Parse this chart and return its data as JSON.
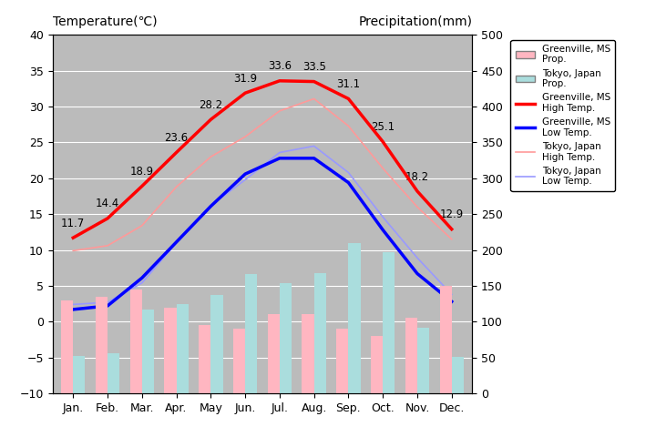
{
  "months": [
    "Jan.",
    "Feb.",
    "Mar.",
    "Apr.",
    "May",
    "Jun.",
    "Jul.",
    "Aug.",
    "Sep.",
    "Oct.",
    "Nov.",
    "Dec."
  ],
  "greenville_high": [
    11.7,
    14.4,
    18.9,
    23.6,
    28.2,
    31.9,
    33.6,
    33.5,
    31.1,
    25.1,
    18.2,
    12.9
  ],
  "greenville_low": [
    1.7,
    2.2,
    6.1,
    11.1,
    16.1,
    20.6,
    22.8,
    22.8,
    19.4,
    12.8,
    6.7,
    2.8
  ],
  "tokyo_high": [
    9.9,
    10.6,
    13.4,
    18.8,
    23.0,
    25.8,
    29.4,
    31.1,
    27.3,
    21.4,
    16.0,
    11.5
  ],
  "tokyo_low": [
    2.4,
    2.7,
    5.4,
    11.0,
    16.2,
    19.8,
    23.6,
    24.5,
    20.8,
    14.6,
    8.9,
    3.8
  ],
  "greenville_precip_mm": [
    130,
    135,
    145,
    120,
    95,
    90,
    110,
    110,
    90,
    80,
    105,
    150
  ],
  "tokyo_precip_mm": [
    52,
    56,
    117,
    125,
    137,
    167,
    154,
    168,
    209,
    197,
    92,
    51
  ],
  "temp_ylim": [
    -10,
    40
  ],
  "precip_ylim": [
    0,
    500
  ],
  "bar_width": 0.35,
  "greenville_bar_color": "#FFB6C1",
  "tokyo_bar_color": "#AADDDD",
  "greenville_high_color": "#FF0000",
  "greenville_low_color": "#0000FF",
  "tokyo_high_color": "#FF9999",
  "tokyo_low_color": "#9999FF",
  "bg_color": "#BBBBBB",
  "grid_color": "#FFFFFF",
  "title_left": "Temperature(℃)",
  "title_right": "Precipitation(mm)",
  "legend_labels": [
    "Greenville, MS\nProp.",
    "Tokyo, Japan\nProp.",
    "Greenville, MS\nHigh Temp.",
    "Greenville, MS\nLow Temp.",
    "Tokyo, Japan\nHigh Temp.",
    "Tokyo, Japan\nLow Temp."
  ],
  "greenville_high_labels": [
    "11.7",
    "14.4",
    "18.9",
    "23.6",
    "28.2",
    "31.9",
    "33.6",
    "33.5",
    "31.1",
    "25.1",
    "18.2",
    "12.9"
  ],
  "label_fontsize": 8.5,
  "tick_fontsize": 9,
  "axis_label_fontsize": 10
}
